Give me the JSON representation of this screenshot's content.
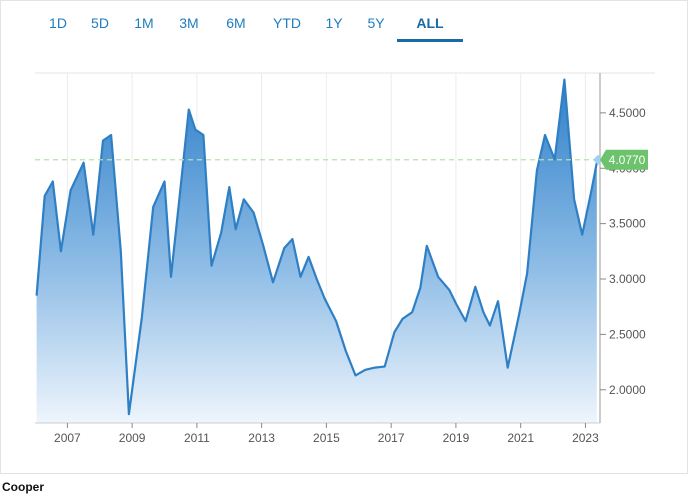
{
  "tabs": [
    {
      "label": "1D",
      "active": false
    },
    {
      "label": "5D",
      "active": false
    },
    {
      "label": "1M",
      "active": false
    },
    {
      "label": "3M",
      "active": false
    },
    {
      "label": "6M",
      "active": false
    },
    {
      "label": "YTD",
      "active": false
    },
    {
      "label": "1Y",
      "active": false
    },
    {
      "label": "5Y",
      "active": false
    },
    {
      "label": "ALL",
      "active": true
    }
  ],
  "footer": {
    "source": "Cooper"
  },
  "colors": {
    "line": "#2e7fc4",
    "fill_top": "#2f80ca",
    "fill_bottom": "#eef5fc",
    "current_badge": "#6cc36b",
    "reference_line": "#b7dfb0",
    "axis_text": "#555555",
    "tab_text": "#1f7dc0"
  },
  "chart_data": {
    "type": "area",
    "x_tick_labels": [
      "2007",
      "2009",
      "2011",
      "2013",
      "2015",
      "2017",
      "2019",
      "2021",
      "2023"
    ],
    "y_tick_labels": [
      "2.0000",
      "2.5000",
      "3.0000",
      "3.5000",
      "4.0000",
      "4.5000"
    ],
    "y_ticks": [
      2.0,
      2.5,
      3.0,
      3.5,
      4.0,
      4.5
    ],
    "xlim": [
      2006.0,
      2023.45
    ],
    "ylim": [
      1.7,
      4.86
    ],
    "grid": "vertical",
    "current_value_label": "4.0770",
    "current_value": 4.077,
    "series": [
      {
        "x": [
          2006.05,
          2006.3,
          2006.55,
          2006.8,
          2007.1,
          2007.5,
          2007.8,
          2008.1,
          2008.35,
          2008.65,
          2008.9,
          2009.3,
          2009.65,
          2010.0,
          2010.2,
          2010.45,
          2010.75,
          2010.95,
          2011.2,
          2011.45,
          2011.75,
          2012.0,
          2012.2,
          2012.45,
          2012.75,
          2013.05,
          2013.35,
          2013.7,
          2013.95,
          2014.2,
          2014.45,
          2014.7,
          2014.95,
          2015.3,
          2015.6,
          2015.9,
          2016.2,
          2016.5,
          2016.8,
          2017.1,
          2017.35,
          2017.65,
          2017.9,
          2018.1,
          2018.45,
          2018.8,
          2019.0,
          2019.3,
          2019.6,
          2019.85,
          2020.05,
          2020.3,
          2020.6,
          2020.95,
          2021.2,
          2021.5,
          2021.75,
          2022.05,
          2022.35,
          2022.65,
          2022.9,
          2023.2,
          2023.35
        ],
        "y": [
          2.85,
          3.75,
          3.88,
          3.25,
          3.8,
          4.05,
          3.4,
          4.25,
          4.3,
          3.25,
          1.78,
          2.65,
          3.65,
          3.88,
          3.02,
          3.7,
          4.53,
          4.35,
          4.3,
          3.12,
          3.42,
          3.83,
          3.45,
          3.72,
          3.6,
          3.3,
          2.97,
          3.28,
          3.36,
          3.02,
          3.2,
          3.0,
          2.82,
          2.62,
          2.35,
          2.13,
          2.18,
          2.2,
          2.21,
          2.52,
          2.64,
          2.7,
          2.92,
          3.3,
          3.02,
          2.9,
          2.78,
          2.62,
          2.93,
          2.7,
          2.58,
          2.8,
          2.2,
          2.68,
          3.05,
          3.98,
          4.3,
          4.08,
          4.8,
          3.72,
          3.4,
          3.82,
          4.05
        ]
      }
    ]
  }
}
